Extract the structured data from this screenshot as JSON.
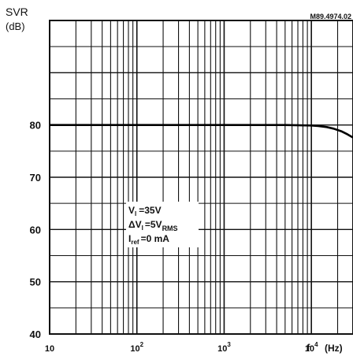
{
  "chart_data": {
    "type": "line",
    "figure_ref": "M89.4974.02",
    "ylabel": "SVR",
    "yunit": "(dB)",
    "xlabel": "f",
    "xunit": "(Hz)",
    "xscale": "log",
    "xlim": [
      10,
      30000
    ],
    "ylim": [
      40,
      100
    ],
    "yticks": [
      {
        "value": 40,
        "label": "40"
      },
      {
        "value": 50,
        "label": "50"
      },
      {
        "value": 60,
        "label": "60"
      },
      {
        "value": 70,
        "label": "70"
      },
      {
        "value": 80,
        "label": "80"
      }
    ],
    "xticks": [
      {
        "value": 10,
        "base": "10",
        "exp": ""
      },
      {
        "value": 100,
        "base": "10",
        "exp": "2"
      },
      {
        "value": 1000,
        "base": "10",
        "exp": "3"
      },
      {
        "value": 10000,
        "base": "10",
        "exp": "4"
      }
    ],
    "grid": true,
    "conditions": [
      "V",
      "I",
      "=35V",
      "ΔV",
      "I",
      "=5V",
      "RMS",
      "I",
      "ref",
      "=0 mA"
    ],
    "series": [
      {
        "x": [
          10,
          100,
          1000,
          5000,
          10000,
          12000,
          15000,
          18000,
          22000,
          26000,
          30000
        ],
        "y": [
          80,
          80,
          80,
          80,
          79.9,
          79.8,
          79.6,
          79.3,
          78.8,
          78.2,
          77.6
        ]
      }
    ]
  }
}
